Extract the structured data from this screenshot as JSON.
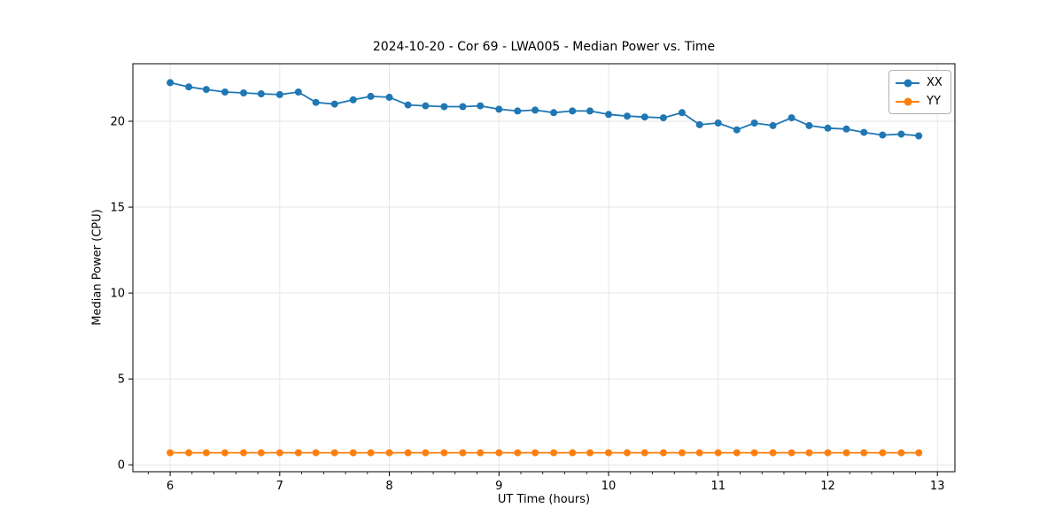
{
  "chart_data": {
    "type": "line",
    "title": "2024-10-20 - Cor 69 - LWA005 - Median Power vs. Time",
    "xlabel": "UT Time (hours)",
    "ylabel": "Median Power (CPU)",
    "xlim": [
      5.66,
      13.16
    ],
    "ylim": [
      -0.4,
      23.35
    ],
    "xticks": [
      6,
      7,
      8,
      9,
      10,
      11,
      12,
      13
    ],
    "yticks": [
      0,
      5,
      10,
      15,
      20
    ],
    "minor_xtick_step": 0.2,
    "grid": true,
    "grid_color": "#e6e6e6",
    "legend_position": "upper right",
    "x": [
      6.0,
      6.17,
      6.33,
      6.5,
      6.67,
      6.83,
      7.0,
      7.17,
      7.33,
      7.5,
      7.67,
      7.83,
      8.0,
      8.17,
      8.33,
      8.5,
      8.67,
      8.83,
      9.0,
      9.17,
      9.33,
      9.5,
      9.67,
      9.83,
      10.0,
      10.17,
      10.33,
      10.5,
      10.67,
      10.83,
      11.0,
      11.17,
      11.33,
      11.5,
      11.67,
      11.83,
      12.0,
      12.17,
      12.33,
      12.5,
      12.67,
      12.83
    ],
    "series": [
      {
        "name": "XX",
        "color": "#1f77b4",
        "values": [
          22.25,
          22.0,
          21.85,
          21.7,
          21.65,
          21.6,
          21.55,
          21.7,
          21.1,
          21.0,
          21.25,
          21.45,
          21.4,
          20.95,
          20.9,
          20.85,
          20.85,
          20.9,
          20.7,
          20.6,
          20.65,
          20.5,
          20.6,
          20.6,
          20.4,
          20.3,
          20.25,
          20.2,
          20.5,
          19.8,
          19.9,
          19.5,
          19.9,
          19.75,
          20.2,
          19.75,
          19.6,
          19.55,
          19.35,
          19.2,
          19.25,
          19.15
        ]
      },
      {
        "name": "YY",
        "color": "#ff7f0e",
        "values": [
          0.7,
          0.7,
          0.7,
          0.7,
          0.7,
          0.7,
          0.7,
          0.7,
          0.7,
          0.7,
          0.7,
          0.7,
          0.7,
          0.7,
          0.7,
          0.7,
          0.7,
          0.7,
          0.7,
          0.7,
          0.7,
          0.7,
          0.7,
          0.7,
          0.7,
          0.7,
          0.7,
          0.7,
          0.7,
          0.7,
          0.7,
          0.7,
          0.7,
          0.7,
          0.7,
          0.7,
          0.7,
          0.7,
          0.7,
          0.7,
          0.7,
          0.7
        ]
      }
    ]
  },
  "legend": {
    "entries": [
      {
        "label": "XX",
        "color": "#1f77b4"
      },
      {
        "label": "YY",
        "color": "#ff7f0e"
      }
    ]
  }
}
